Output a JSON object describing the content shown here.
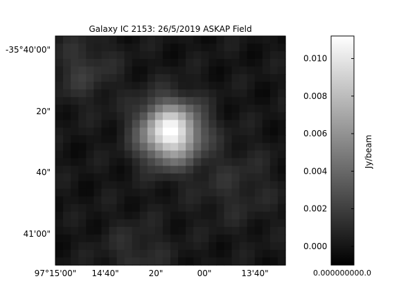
{
  "chart_data": {
    "type": "heatmap",
    "title": "Galaxy IC 2153: 26/5/2019 ASKAP Field",
    "colormap": "grayscale",
    "colors": {
      "low": "#000000",
      "high": "#ffffff",
      "frame": "#000000"
    },
    "x_ticks": [
      "97°15'00\"",
      "14'40\"",
      "20\"",
      "00\"",
      "13'40\""
    ],
    "y_ticks": [
      "-35°40'00\"",
      "20\"",
      "40\"",
      "41'00\""
    ],
    "colorbar": {
      "label": "Jy/beam",
      "range": [
        -0.001,
        0.0112
      ],
      "ticks": [
        "0.000",
        "0.002",
        "0.004",
        "0.006",
        "0.008",
        "0.010"
      ],
      "bottom_tick_text": "0.000000000.0"
    },
    "source_peak_jy_per_beam": 0.0112,
    "background_level_jy_per_beam": 0.0,
    "grid_cells": [
      30,
      30
    ]
  }
}
